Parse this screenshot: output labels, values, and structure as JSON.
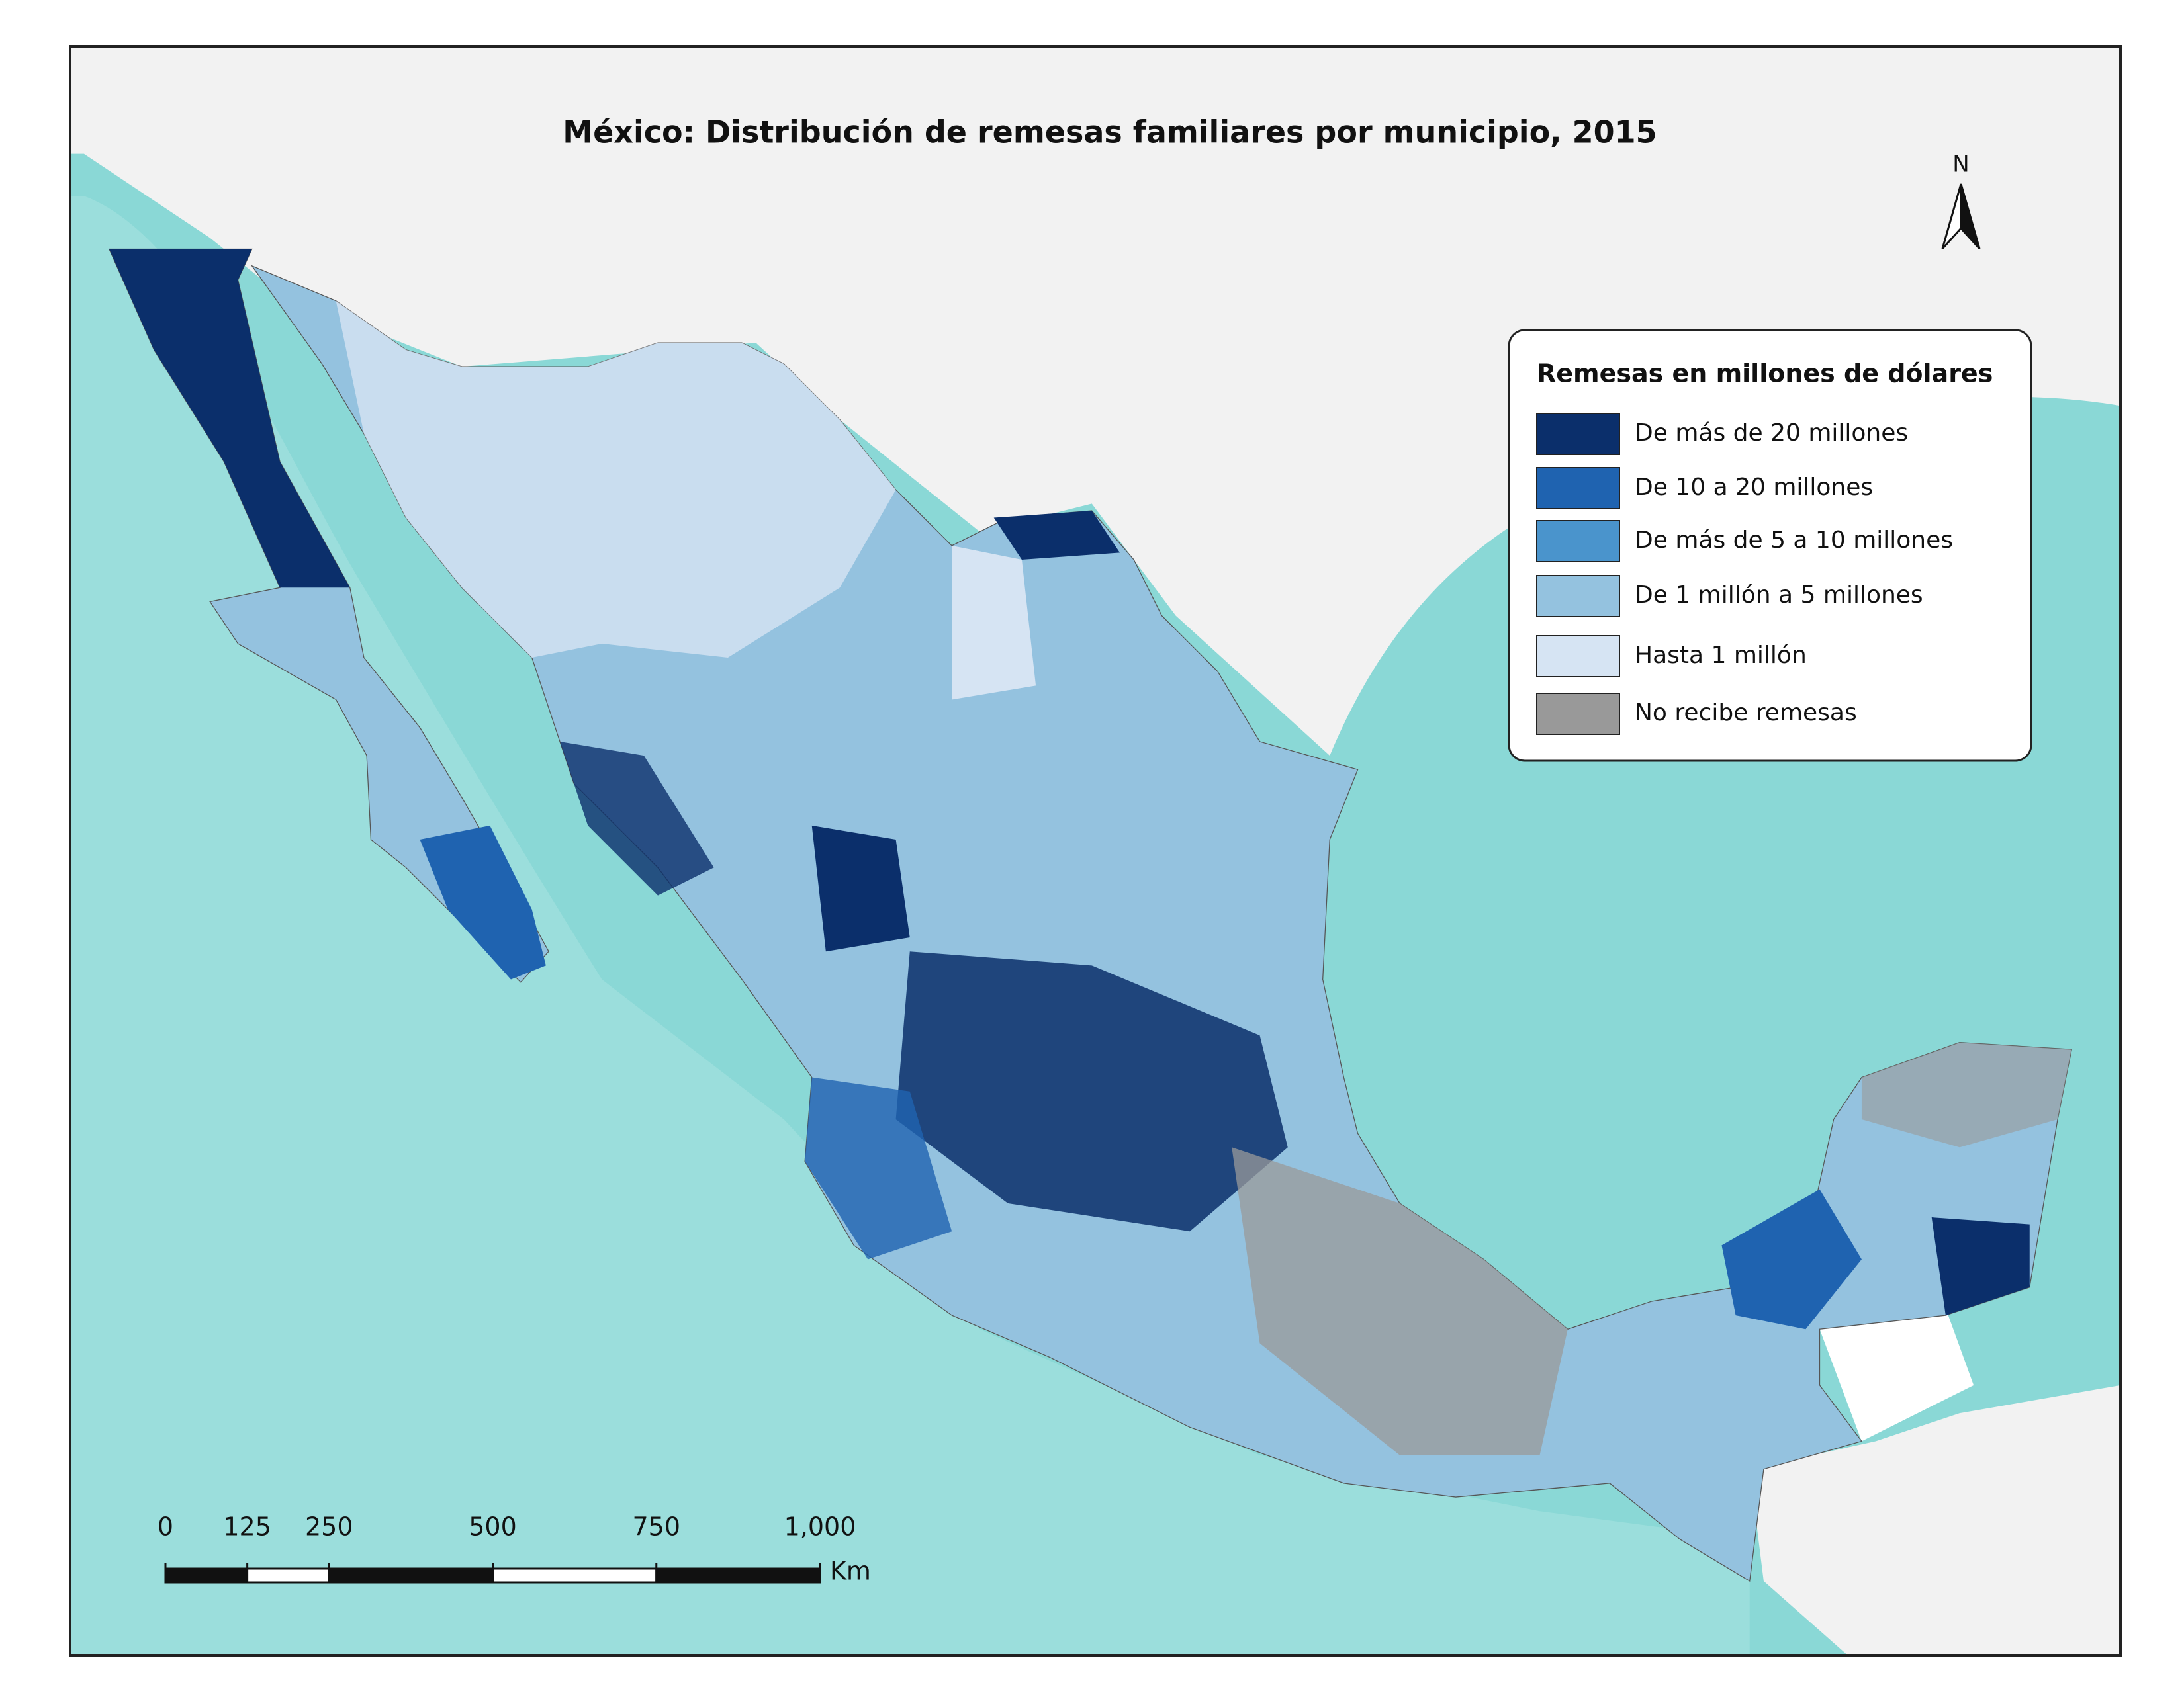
{
  "map": {
    "title": "México: Distribución de remesas familiares por municipio, 2015",
    "north_label": "N",
    "legend": {
      "title": "Remesas en millones de dólares",
      "items": [
        {
          "label": "De más de 20 millones",
          "color": "#0b2f6b"
        },
        {
          "label": "De 10 a 20 millones",
          "color": "#1f63b0"
        },
        {
          "label": "De más de 5 a 10 millones",
          "color": "#4a94cc"
        },
        {
          "label": "De 1 millón a 5 millones",
          "color": "#94c2df"
        },
        {
          "label": "Hasta 1 millón",
          "color": "#d6e4f3"
        },
        {
          "label": "No recibe remesas",
          "color": "#999999"
        }
      ]
    },
    "scale_bar": {
      "ticks": [
        0,
        125,
        250,
        500,
        750,
        {
          "value": 1000,
          "label": "1,000"
        }
      ],
      "unit": "Km"
    }
  }
}
